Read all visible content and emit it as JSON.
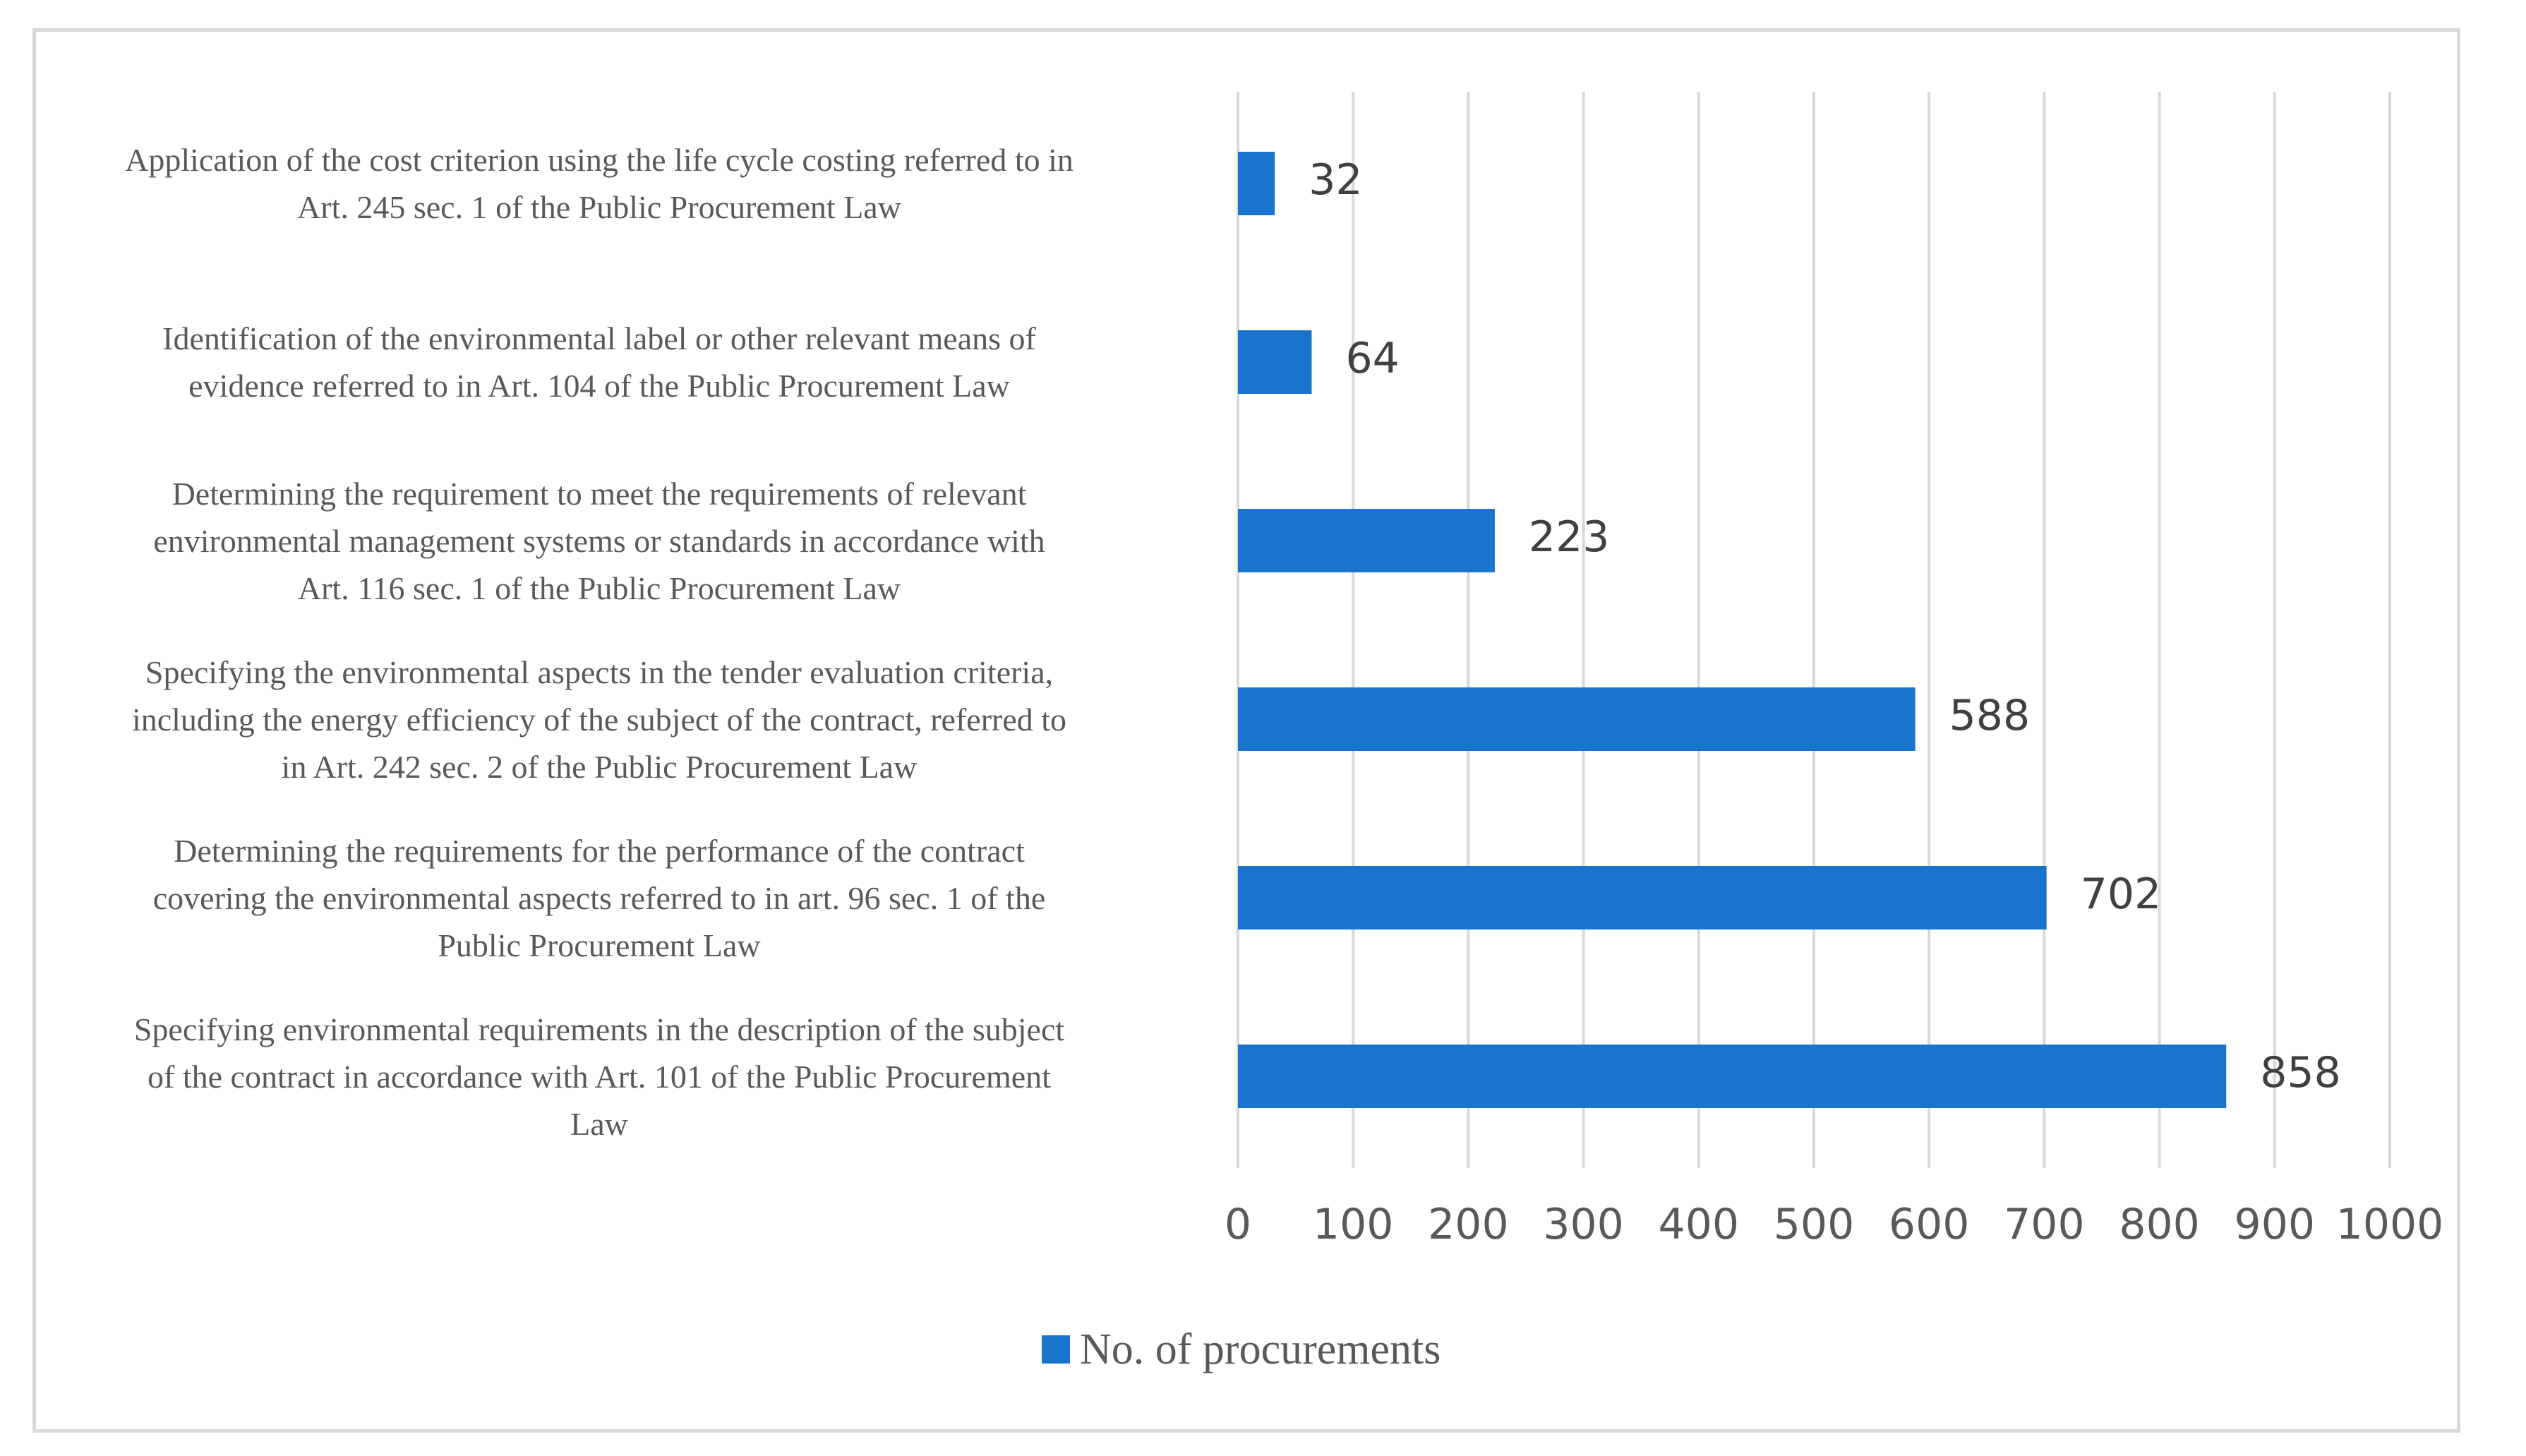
{
  "chart_data": {
    "type": "bar",
    "orientation": "horizontal",
    "categories": [
      [
        "Application of the cost criterion using the life cycle costing referred to in",
        "Art. 245 sec. 1 of the Public Procurement Law"
      ],
      [
        "Identification of the environmental label or other relevant means of",
        "evidence referred to in Art. 104 of the Public Procurement Law"
      ],
      [
        "Determining the requirement to meet the requirements of relevant",
        "environmental management systems or standards in accordance with",
        "Art. 116 sec. 1 of the Public Procurement Law"
      ],
      [
        "Specifying the environmental aspects in the tender evaluation criteria,",
        "including the energy efficiency of the subject of the contract, referred to",
        "in Art. 242 sec. 2 of the Public Procurement Law"
      ],
      [
        "Determining the requirements for the performance of the contract",
        "covering the environmental aspects referred to in art. 96 sec. 1 of the",
        "Public Procurement Law"
      ],
      [
        "Specifying environmental requirements in the description of the subject",
        "of the contract in accordance with Art. 101 of the Public Procurement",
        "Law"
      ]
    ],
    "series": [
      {
        "name": "No. of procurements",
        "values": [
          32,
          64,
          223,
          588,
          702,
          858
        ],
        "color": "#1874cd"
      }
    ],
    "xlim": [
      0,
      1000
    ],
    "ticks": [
      "0",
      "100",
      "200",
      "300",
      "400",
      "500",
      "600",
      "700",
      "800",
      "900",
      "1000"
    ],
    "data_labels": [
      "32",
      "64",
      "223",
      "588",
      "702",
      "858"
    ],
    "grid": true,
    "legend": "bottom-center",
    "gridColor": "#d9d9d9"
  }
}
